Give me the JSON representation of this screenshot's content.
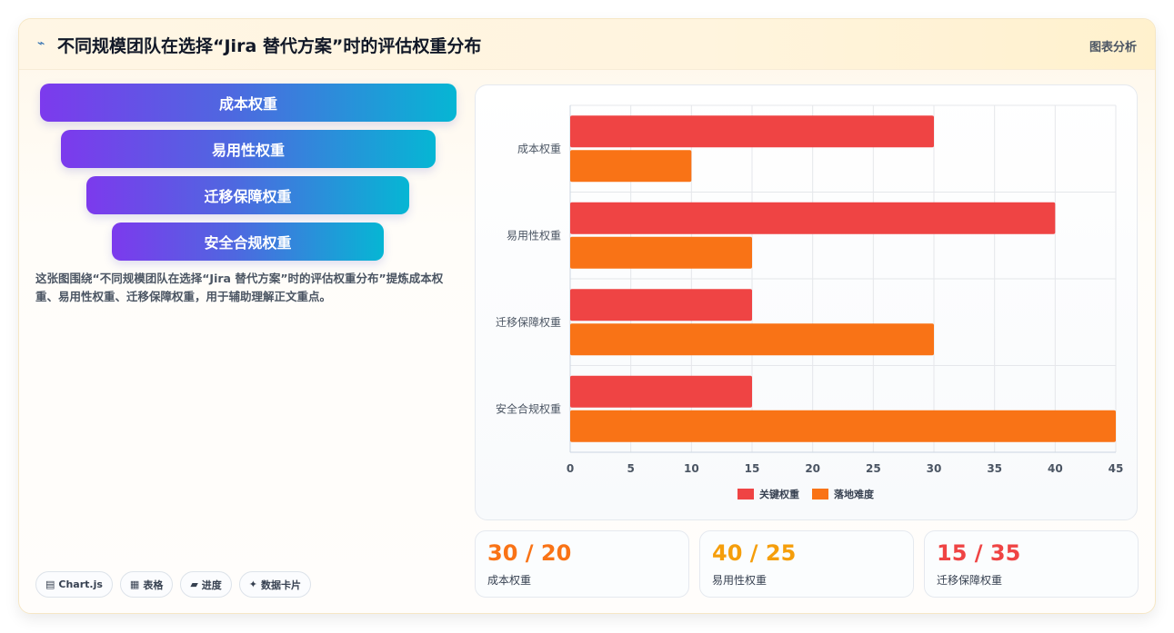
{
  "header": {
    "icon": "trend-icon",
    "title": "不同规模团队在选择“Jira 替代方案”时的评估权重分布",
    "right_label": "图表分析"
  },
  "funnel": {
    "items": [
      "成本权重",
      "易用性权重",
      "迁移保障权重",
      "安全合规权重"
    ]
  },
  "description": "这张图围绕“不同规模团队在选择“Jira 替代方案”时的评估权重分布”提炼成本权重、易用性权重、迁移保障权重，用于辅助理解正文重点。",
  "tags": [
    {
      "icon": "chart-icon",
      "label": "Chart.js"
    },
    {
      "icon": "table-icon",
      "label": "表格"
    },
    {
      "icon": "progress-icon",
      "label": "进度"
    },
    {
      "icon": "sparkle-icon",
      "label": "数据卡片"
    }
  ],
  "chart_data": {
    "type": "bar",
    "orientation": "horizontal",
    "categories": [
      "成本权重",
      "易用性权重",
      "迁移保障权重",
      "安全合规权重"
    ],
    "series": [
      {
        "name": "关键权重",
        "values": [
          30,
          40,
          15,
          15
        ],
        "color": "#ef4444"
      },
      {
        "name": "落地难度",
        "values": [
          10,
          15,
          30,
          45
        ],
        "color": "#f97316"
      }
    ],
    "x_ticks": [
      0,
      5,
      10,
      15,
      20,
      25,
      30,
      35,
      40,
      45
    ],
    "xlim": [
      0,
      45
    ],
    "grid": true,
    "legend_position": "bottom"
  },
  "stats": [
    {
      "value": "30 / 20",
      "label": "成本权重",
      "color": "#f97316"
    },
    {
      "value": "40 / 25",
      "label": "易用性权重",
      "color": "#f59e0b"
    },
    {
      "value": "15 / 35",
      "label": "迁移保障权重",
      "color": "#ef4444"
    }
  ]
}
